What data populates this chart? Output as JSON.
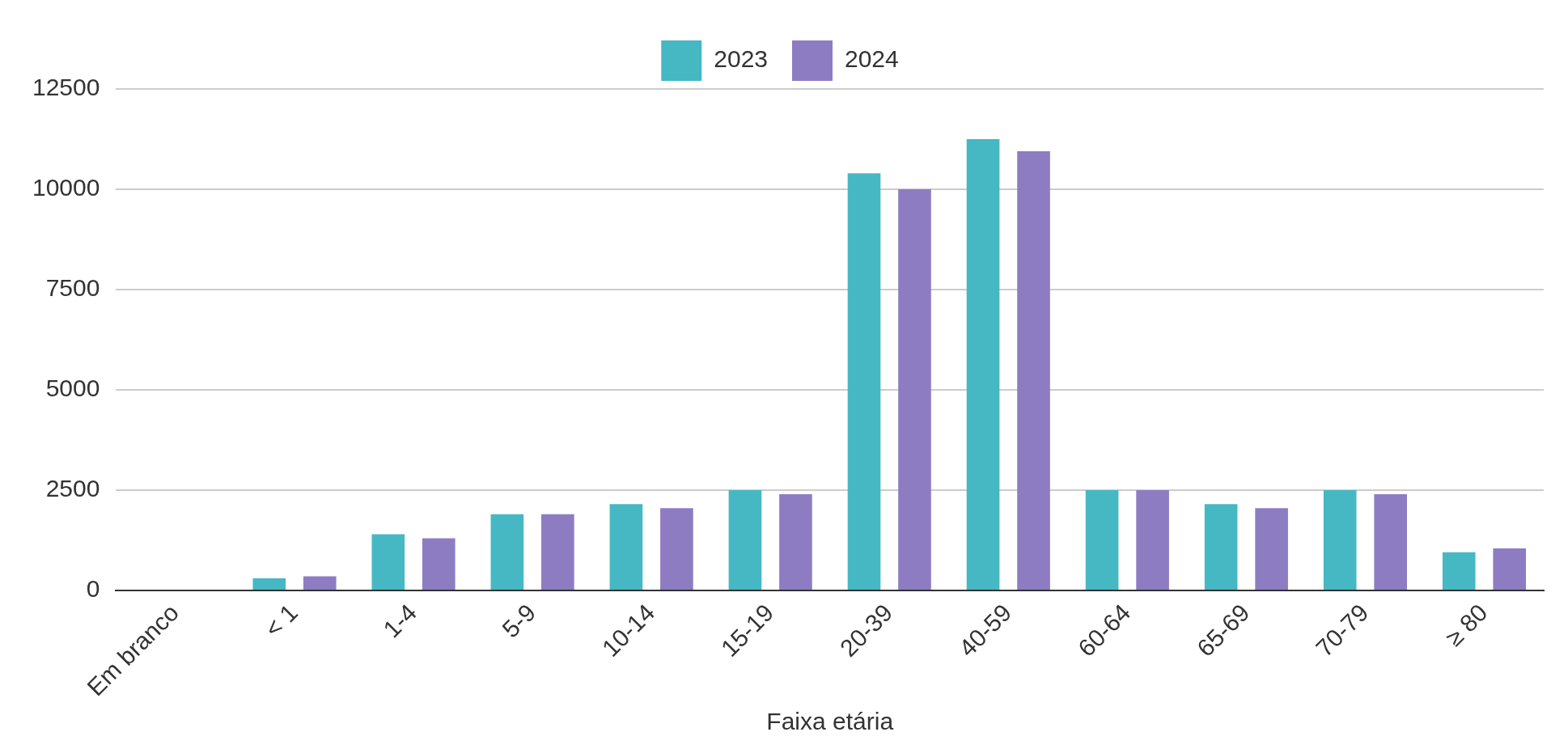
{
  "chart_data": {
    "type": "bar",
    "xlabel": "Faixa etária",
    "categories": [
      "Em branco",
      "< 1",
      "1-4",
      "5-9",
      "10-14",
      "15-19",
      "20-39",
      "40-59",
      "60-64",
      "65-69",
      "70-79",
      "≥ 80"
    ],
    "series": [
      {
        "name": "2023",
        "color": "#45b8c4",
        "values": [
          0,
          300,
          1400,
          1900,
          2150,
          2500,
          10400,
          11250,
          2500,
          2150,
          2500,
          950
        ]
      },
      {
        "name": "2024",
        "color": "#8e7cc3",
        "values": [
          0,
          350,
          1300,
          1900,
          2050,
          2400,
          10000,
          10950,
          2500,
          2050,
          2400,
          1050
        ]
      }
    ],
    "ylim": [
      0,
      12500
    ],
    "yticks": [
      0,
      2500,
      5000,
      7500,
      10000,
      12500
    ],
    "grid": "y",
    "legend": "top"
  }
}
